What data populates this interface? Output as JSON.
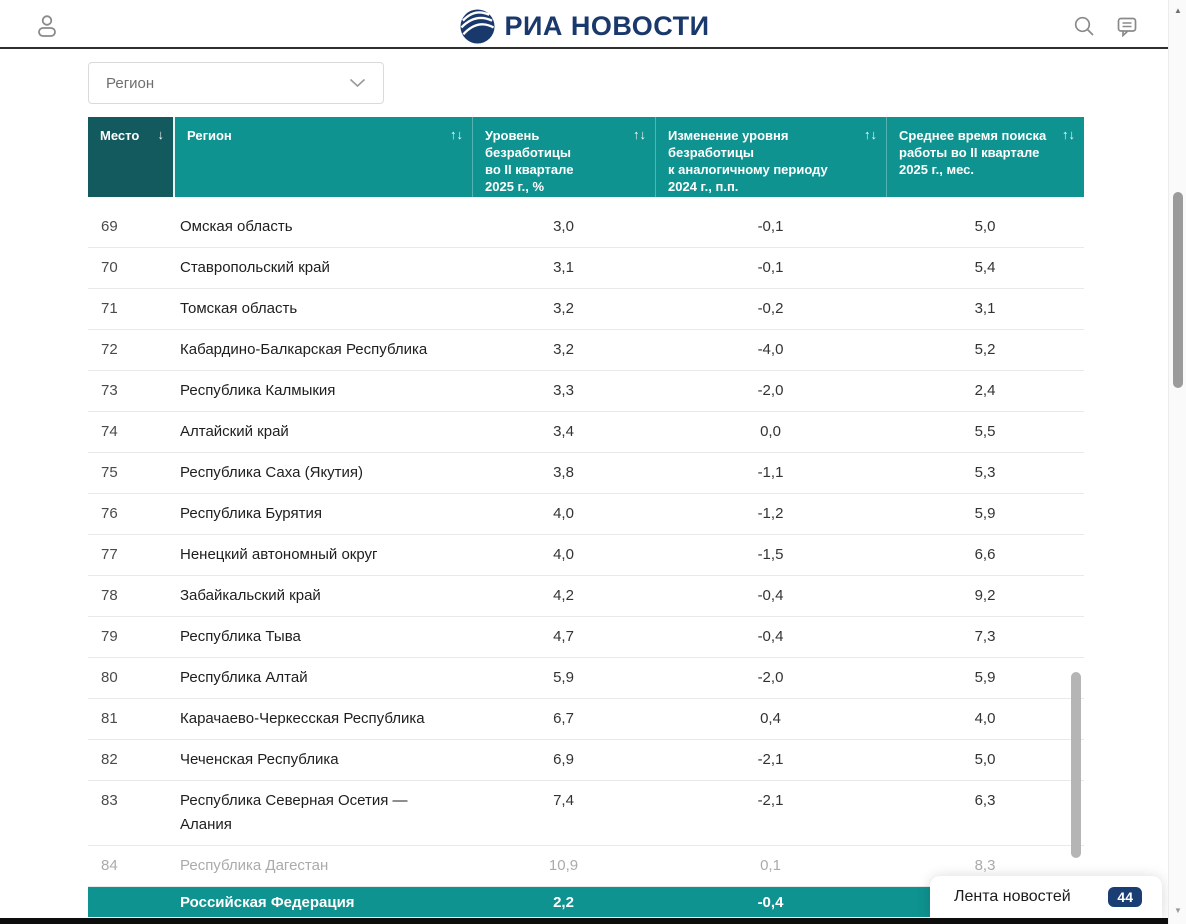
{
  "header": {
    "logo_text": "РИА НОВОСТИ"
  },
  "filter": {
    "label": "Регион"
  },
  "table": {
    "columns": [
      {
        "key": "mesto",
        "label": "Место",
        "sort": "↓"
      },
      {
        "key": "region",
        "label": "Регион",
        "sort": "↑↓"
      },
      {
        "key": "unemployment-rate",
        "label": "Уровень\nбезработицы\nво II квартале\n2025 г., %",
        "sort": "↑↓"
      },
      {
        "key": "rate-change",
        "label": "Изменение уровня\nбезработицы\nк аналогичному периоду\n2024 г., п.п.",
        "sort": "↑↓"
      },
      {
        "key": "search-time",
        "label": "Среднее время поиска\nработы во II квартале\n2025 г., мес.",
        "sort": "↑↓"
      }
    ],
    "rows": [
      {
        "rank": "69",
        "region": "Омская область",
        "rate": "3,0",
        "change": "-0,1",
        "time": "5,0"
      },
      {
        "rank": "70",
        "region": "Ставропольский край",
        "rate": "3,1",
        "change": "-0,1",
        "time": "5,4"
      },
      {
        "rank": "71",
        "region": "Томская область",
        "rate": "3,2",
        "change": "-0,2",
        "time": "3,1"
      },
      {
        "rank": "72",
        "region": "Кабардино-Балкарская Республика",
        "rate": "3,2",
        "change": "-4,0",
        "time": "5,2"
      },
      {
        "rank": "73",
        "region": "Республика Калмыкия",
        "rate": "3,3",
        "change": "-2,0",
        "time": "2,4"
      },
      {
        "rank": "74",
        "region": "Алтайский край",
        "rate": "3,4",
        "change": "0,0",
        "time": "5,5"
      },
      {
        "rank": "75",
        "region": "Республика Саха (Якутия)",
        "rate": "3,8",
        "change": "-1,1",
        "time": "5,3"
      },
      {
        "rank": "76",
        "region": "Республика Бурятия",
        "rate": "4,0",
        "change": "-1,2",
        "time": "5,9"
      },
      {
        "rank": "77",
        "region": "Ненецкий автономный округ",
        "rate": "4,0",
        "change": "-1,5",
        "time": "6,6"
      },
      {
        "rank": "78",
        "region": "Забайкальский край",
        "rate": "4,2",
        "change": "-0,4",
        "time": "9,2"
      },
      {
        "rank": "79",
        "region": "Республика Тыва",
        "rate": "4,7",
        "change": "-0,4",
        "time": "7,3"
      },
      {
        "rank": "80",
        "region": "Республика Алтай",
        "rate": "5,9",
        "change": "-2,0",
        "time": "5,9"
      },
      {
        "rank": "81",
        "region": "Карачаево-Черкесская Республика",
        "rate": "6,7",
        "change": "0,4",
        "time": "4,0"
      },
      {
        "rank": "82",
        "region": "Чеченская Республика",
        "rate": "6,9",
        "change": "-2,1",
        "time": "5,0"
      },
      {
        "rank": "83",
        "region": "Республика Северная Осетия —\nАлания",
        "rate": "7,4",
        "change": "-2,1",
        "time": "6,3"
      },
      {
        "rank": "84",
        "region": "Республика Дагестан",
        "rate": "10,9",
        "change": "0,1",
        "time": "8,3",
        "muted": true
      }
    ],
    "summary_row": {
      "rank": "",
      "region": "Российская Федерация",
      "rate": "2,2",
      "change": "-0,4",
      "time": ""
    }
  },
  "news_feed": {
    "label": "Лента новостей",
    "count": "44"
  },
  "colors": {
    "teal": "#0F9390",
    "teal_dark": "#125A5E",
    "logo_navy": "#19386B",
    "badge_navy": "#1A3E73",
    "muted_text": "#ababab"
  }
}
